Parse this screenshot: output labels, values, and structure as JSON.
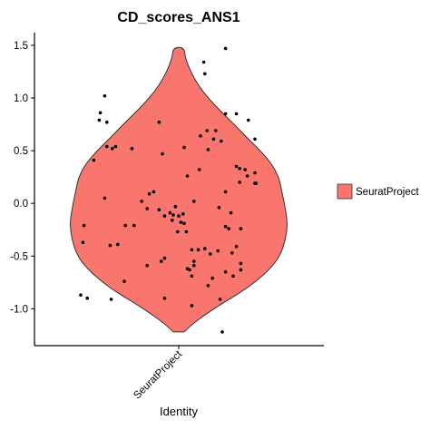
{
  "chart_data": {
    "type": "violin",
    "title": "CD_scores_ANS1",
    "xlabel": "Identity",
    "ylabel": "",
    "categories": [
      "SeuratProject"
    ],
    "yticks": [
      "-1.0",
      "-0.5",
      "0.0",
      "0.5",
      "1.0",
      "1.5"
    ],
    "ytick_values": [
      -1.0,
      -0.5,
      0.0,
      0.5,
      1.0,
      1.5
    ],
    "ylim": [
      -1.35,
      1.62
    ],
    "grid": false,
    "legend": {
      "position": "right",
      "entries": [
        "SeuratProject"
      ]
    },
    "fill_color": "#F8766D",
    "violin": {
      "y_min": -1.22,
      "y_max": 1.48,
      "density": [
        [
          -1.22,
          0.05
        ],
        [
          -1.15,
          0.12
        ],
        [
          -1.05,
          0.25
        ],
        [
          -0.95,
          0.4
        ],
        [
          -0.85,
          0.56
        ],
        [
          -0.75,
          0.7
        ],
        [
          -0.62,
          0.84
        ],
        [
          -0.5,
          0.93
        ],
        [
          -0.35,
          0.98
        ],
        [
          -0.2,
          1.0
        ],
        [
          -0.05,
          0.98
        ],
        [
          0.1,
          0.95
        ],
        [
          0.25,
          0.92
        ],
        [
          0.38,
          0.85
        ],
        [
          0.5,
          0.75
        ],
        [
          0.62,
          0.63
        ],
        [
          0.75,
          0.51
        ],
        [
          0.88,
          0.38
        ],
        [
          1.0,
          0.27
        ],
        [
          1.12,
          0.18
        ],
        [
          1.25,
          0.11
        ],
        [
          1.38,
          0.06
        ],
        [
          1.48,
          0.05
        ]
      ]
    },
    "points": [
      {
        "x": -0.68,
        "y": 1.02
      },
      {
        "x": -0.72,
        "y": 0.86
      },
      {
        "x": -0.73,
        "y": 0.79
      },
      {
        "x": -0.66,
        "y": 0.77
      },
      {
        "x": -0.78,
        "y": 0.41
      },
      {
        "x": -0.66,
        "y": 0.54
      },
      {
        "x": -0.61,
        "y": 0.52
      },
      {
        "x": -0.58,
        "y": 0.54
      },
      {
        "x": -0.43,
        "y": 0.52
      },
      {
        "x": -0.68,
        "y": 0.05
      },
      {
        "x": -0.87,
        "y": -0.21
      },
      {
        "x": -0.88,
        "y": -0.37
      },
      {
        "x": -0.63,
        "y": -0.4
      },
      {
        "x": -0.56,
        "y": -0.39
      },
      {
        "x": -0.49,
        "y": -0.21
      },
      {
        "x": -0.41,
        "y": -0.21
      },
      {
        "x": -0.34,
        "y": 0.02
      },
      {
        "x": -0.27,
        "y": 0.09
      },
      {
        "x": -0.29,
        "y": -0.05
      },
      {
        "x": -0.23,
        "y": 0.11
      },
      {
        "x": -0.18,
        "y": -0.06
      },
      {
        "x": -0.13,
        "y": -0.12
      },
      {
        "x": -0.08,
        "y": -0.09
      },
      {
        "x": -0.05,
        "y": -0.11
      },
      {
        "x": -0.03,
        "y": -0.03
      },
      {
        "x": 0.0,
        "y": -0.12
      },
      {
        "x": -0.06,
        "y": -0.16
      },
      {
        "x": 0.02,
        "y": -0.18
      },
      {
        "x": 0.04,
        "y": -0.1
      },
      {
        "x": -0.01,
        "y": -0.27
      },
      {
        "x": 0.05,
        "y": -0.19
      },
      {
        "x": 0.07,
        "y": -0.27
      },
      {
        "x": -0.18,
        "y": 0.77
      },
      {
        "x": -0.15,
        "y": 0.47
      },
      {
        "x": 0.05,
        "y": 0.53
      },
      {
        "x": 0.08,
        "y": 0.26
      },
      {
        "x": 0.14,
        "y": 0.02
      },
      {
        "x": 0.2,
        "y": 0.64
      },
      {
        "x": 0.26,
        "y": 0.69
      },
      {
        "x": 0.32,
        "y": 0.61
      },
      {
        "x": 0.34,
        "y": 0.69
      },
      {
        "x": 0.19,
        "y": 0.32
      },
      {
        "x": 0.39,
        "y": 0.59
      },
      {
        "x": 0.27,
        "y": 0.51
      },
      {
        "x": 0.24,
        "y": 1.23
      },
      {
        "x": 0.23,
        "y": 1.34
      },
      {
        "x": 0.43,
        "y": 0.11
      },
      {
        "x": 0.43,
        "y": 0.85
      },
      {
        "x": 0.53,
        "y": 0.85
      },
      {
        "x": 0.64,
        "y": 0.79
      },
      {
        "x": 0.7,
        "y": 0.61
      },
      {
        "x": 0.53,
        "y": 0.35
      },
      {
        "x": 0.56,
        "y": 0.33
      },
      {
        "x": 0.61,
        "y": 0.32
      },
      {
        "x": 0.63,
        "y": 0.26
      },
      {
        "x": 0.7,
        "y": 0.29
      },
      {
        "x": 0.7,
        "y": 0.19
      },
      {
        "x": 0.56,
        "y": 0.2
      },
      {
        "x": 0.37,
        "y": -0.04
      },
      {
        "x": 0.48,
        "y": -0.09
      },
      {
        "x": 0.43,
        "y": -0.22
      },
      {
        "x": 0.57,
        "y": -0.24
      },
      {
        "x": 0.71,
        "y": 0.19
      },
      {
        "x": 0.46,
        "y": -0.24
      },
      {
        "x": 0.53,
        "y": -0.41
      },
      {
        "x": 0.49,
        "y": -0.47
      },
      {
        "x": 0.43,
        "y": -0.65
      },
      {
        "x": 0.5,
        "y": -0.69
      },
      {
        "x": 0.57,
        "y": -0.57
      },
      {
        "x": 0.57,
        "y": -0.63
      },
      {
        "x": 0.31,
        "y": -0.71
      },
      {
        "x": 0.27,
        "y": -0.78
      },
      {
        "x": 0.18,
        "y": -0.44
      },
      {
        "x": 0.24,
        "y": -0.43
      },
      {
        "x": 0.29,
        "y": -0.48
      },
      {
        "x": 0.36,
        "y": -0.45
      },
      {
        "x": 0.12,
        "y": -0.44
      },
      {
        "x": -0.13,
        "y": -0.52
      },
      {
        "x": -0.16,
        "y": -0.55
      },
      {
        "x": -0.29,
        "y": -0.59
      },
      {
        "x": -0.5,
        "y": -0.74
      },
      {
        "x": -0.62,
        "y": -0.91
      },
      {
        "x": -0.9,
        "y": -0.87
      },
      {
        "x": -0.84,
        "y": -0.9
      },
      {
        "x": -0.13,
        "y": -0.9
      },
      {
        "x": 0.08,
        "y": -0.62
      },
      {
        "x": 0.1,
        "y": -0.63
      },
      {
        "x": 0.14,
        "y": -0.55
      },
      {
        "x": 0.14,
        "y": -0.59
      },
      {
        "x": 0.12,
        "y": -0.69
      },
      {
        "x": 0.12,
        "y": -0.97
      },
      {
        "x": 0.38,
        "y": -0.91
      },
      {
        "x": 0.4,
        "y": -1.22
      },
      {
        "x": 0.43,
        "y": 1.47
      }
    ]
  }
}
